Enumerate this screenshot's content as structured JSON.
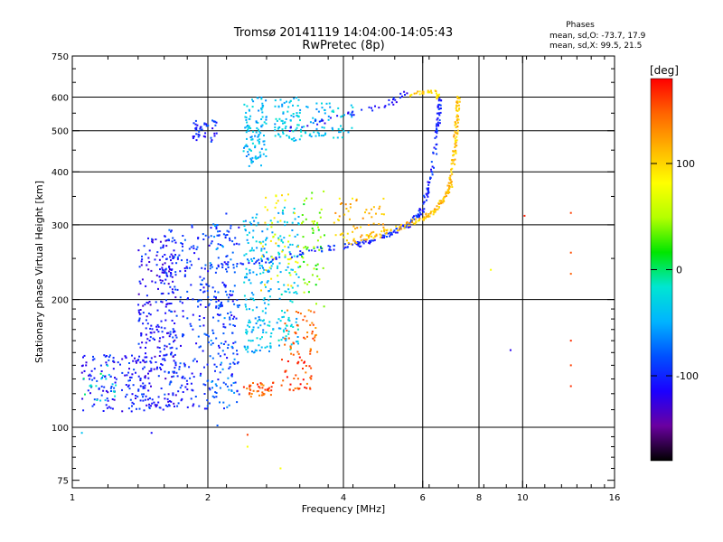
{
  "chart_data": {
    "type": "scatter",
    "title": "Tromsø 20141119 14:04:00-14:05:43",
    "subtitle": "RwPretec (8p)",
    "xlabel": "Frequency [MHz]",
    "ylabel": "Stationary phase Virtual Height [km]",
    "x_scale": "log",
    "y_scale": "log",
    "xlim": [
      1,
      16
    ],
    "ylim": [
      72,
      750
    ],
    "x_ticks": [
      1,
      2,
      4,
      6,
      8,
      10,
      16
    ],
    "y_ticks": [
      75,
      100,
      200,
      300,
      400,
      500,
      600,
      750
    ],
    "grid": true,
    "stats": {
      "heading": "Phases",
      "line_o": "mean, sd,O: -73.7, 17.9",
      "line_x": "mean, sd,X:  99.5, 21.5"
    },
    "colorbar": {
      "label": "[deg]",
      "range": [
        -180,
        180
      ],
      "ticks": [
        100,
        0,
        -100
      ],
      "colors": [
        "#000000",
        "#6a00a0",
        "#1b00ff",
        "#0050ff",
        "#00b4ff",
        "#00e6d2",
        "#00e600",
        "#b4ff00",
        "#ffff00",
        "#ffb400",
        "#ff6400",
        "#ff0000"
      ]
    },
    "clusters": [
      {
        "f0": 1.05,
        "f1": 1.5,
        "h0": 109,
        "h1": 150,
        "phase": -105,
        "n": 140
      },
      {
        "f0": 1.05,
        "f1": 1.25,
        "h0": 115,
        "h1": 140,
        "phase": -20,
        "n": 20
      },
      {
        "f0": 1.4,
        "f1": 1.7,
        "h0": 110,
        "h1": 280,
        "phase": -110,
        "n": 260
      },
      {
        "f0": 1.6,
        "f1": 2.35,
        "h0": 110,
        "h1": 300,
        "phase": -95,
        "n": 320
      },
      {
        "f0": 2.0,
        "f1": 2.3,
        "h0": 110,
        "h1": 320,
        "phase": -75,
        "n": 90
      },
      {
        "f0": 2.4,
        "f1": 2.8,
        "h0": 150,
        "h1": 320,
        "phase": -45,
        "n": 180
      },
      {
        "f0": 2.85,
        "f1": 3.2,
        "h0": 150,
        "h1": 330,
        "phase": -35,
        "n": 110
      },
      {
        "f0": 3.2,
        "f1": 3.65,
        "h0": 190,
        "h1": 360,
        "phase": 35,
        "n": 60
      },
      {
        "f0": 2.6,
        "f1": 3.2,
        "h0": 210,
        "h1": 360,
        "phase": 80,
        "n": 50
      },
      {
        "f0": 2.4,
        "f1": 2.8,
        "h0": 118,
        "h1": 128,
        "phase": 150,
        "n": 40
      },
      {
        "f0": 2.9,
        "f1": 3.4,
        "h0": 122,
        "h1": 150,
        "phase": 160,
        "n": 45
      },
      {
        "f0": 2.95,
        "f1": 3.5,
        "h0": 150,
        "h1": 190,
        "phase": 145,
        "n": 45
      },
      {
        "f0": 1.85,
        "f1": 2.1,
        "h0": 470,
        "h1": 530,
        "phase": -100,
        "n": 45
      },
      {
        "f0": 2.4,
        "f1": 2.7,
        "h0": 410,
        "h1": 600,
        "phase": -45,
        "n": 110
      },
      {
        "f0": 2.8,
        "f1": 3.3,
        "h0": 470,
        "h1": 600,
        "phase": -40,
        "n": 80
      },
      {
        "f0": 3.3,
        "f1": 4.2,
        "h0": 480,
        "h1": 580,
        "phase": -40,
        "n": 60
      },
      {
        "f0": 3.8,
        "f1": 5.0,
        "h0": 280,
        "h1": 350,
        "phase": 110,
        "n": 55
      }
    ],
    "o_trace": {
      "phase": -100,
      "points": [
        [
          1.55,
          236
        ],
        [
          2.5,
          243
        ],
        [
          3.5,
          262
        ],
        [
          4.3,
          270
        ],
        [
          5.0,
          282
        ],
        [
          5.6,
          300
        ],
        [
          6.0,
          325
        ],
        [
          6.3,
          400
        ],
        [
          6.5,
          520
        ],
        [
          6.55,
          600
        ]
      ]
    },
    "x_trace": {
      "phase": 110,
      "points": [
        [
          4.0,
          270
        ],
        [
          5.0,
          290
        ],
        [
          6.0,
          310
        ],
        [
          6.5,
          330
        ],
        [
          6.9,
          370
        ],
        [
          7.05,
          440
        ],
        [
          7.15,
          520
        ],
        [
          7.2,
          600
        ]
      ]
    },
    "f_traces": [
      {
        "phase": -105,
        "points": [
          [
            3.0,
            505
          ],
          [
            4.0,
            540
          ],
          [
            5.0,
            575
          ],
          [
            5.6,
            620
          ]
        ]
      },
      {
        "phase": 100,
        "points": [
          [
            5.6,
            610
          ],
          [
            6.2,
            620
          ],
          [
            6.6,
            600
          ]
        ]
      }
    ],
    "sparse": [
      {
        "f": 8.5,
        "h": 235,
        "phase": 80
      },
      {
        "f": 9.4,
        "h": 152,
        "phase": -120
      },
      {
        "f": 10.1,
        "h": 315,
        "phase": 170
      },
      {
        "f": 12.8,
        "h": 320,
        "phase": 160
      },
      {
        "f": 12.8,
        "h": 258,
        "phase": 155
      },
      {
        "f": 12.8,
        "h": 230,
        "phase": 150
      },
      {
        "f": 12.8,
        "h": 160,
        "phase": 165
      },
      {
        "f": 12.8,
        "h": 140,
        "phase": 160
      },
      {
        "f": 12.8,
        "h": 125,
        "phase": 165
      },
      {
        "f": 1.5,
        "h": 97,
        "phase": -110
      },
      {
        "f": 1.05,
        "h": 97,
        "phase": -40
      },
      {
        "f": 2.1,
        "h": 101,
        "phase": -80
      },
      {
        "f": 2.45,
        "h": 96,
        "phase": 160
      },
      {
        "f": 2.45,
        "h": 90,
        "phase": 80
      },
      {
        "f": 2.9,
        "h": 80,
        "phase": 80
      }
    ]
  }
}
